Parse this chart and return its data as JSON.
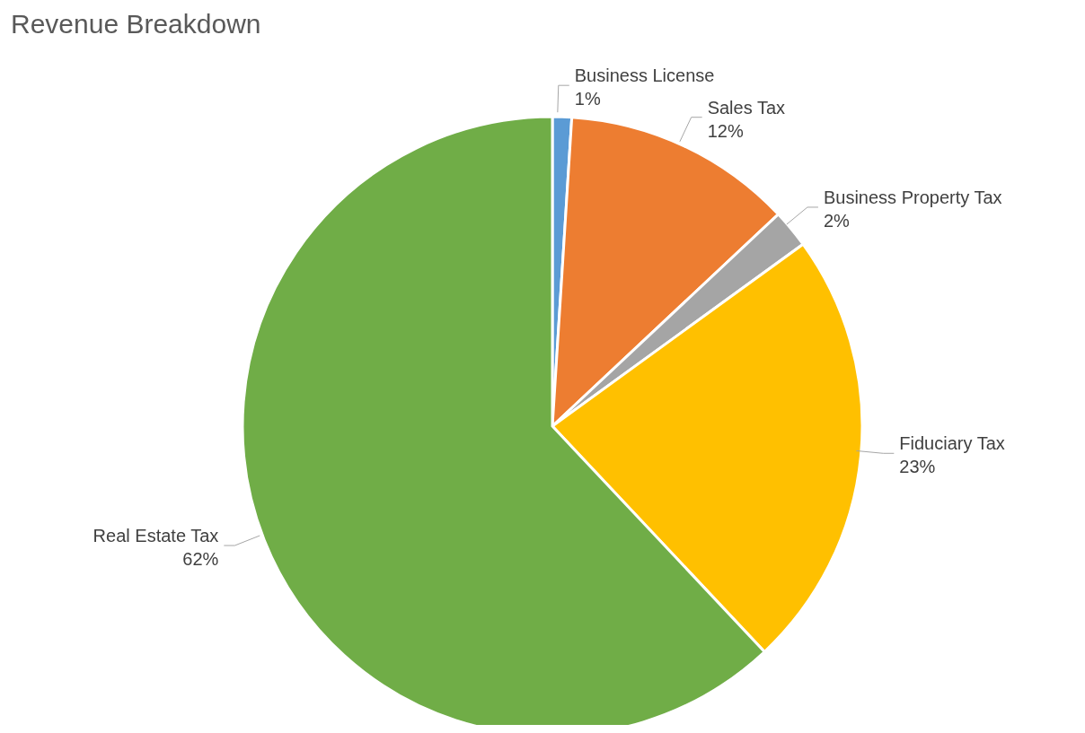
{
  "chart_data": {
    "type": "pie",
    "title": "Revenue Breakdown",
    "categories": [
      "Business License",
      "Sales Tax",
      "Business Property Tax",
      "Fiduciary Tax",
      "Real Estate Tax"
    ],
    "values": [
      1,
      12,
      2,
      23,
      62
    ],
    "value_labels": [
      "1%",
      "12%",
      "2%",
      "23%",
      "62%"
    ],
    "colors": [
      "#5b9bd5",
      "#ed7d31",
      "#a5a5a5",
      "#ffc000",
      "#70ad47"
    ],
    "legend": false
  }
}
